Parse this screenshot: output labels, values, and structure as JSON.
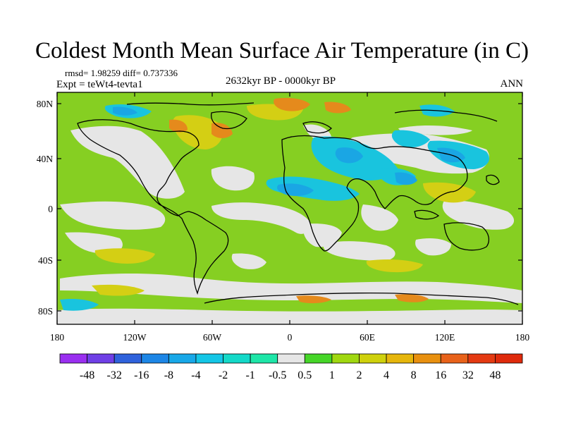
{
  "title": "Coldest Month Mean Surface Air Temperature (in C)",
  "stats_line": "rmsd= 1.98259 diff= 0.737336",
  "experiment_line": "Expt = teWt4-tevta1",
  "period_line": "2632kyr BP - 0000kyr BP",
  "season": "ANN",
  "axes": {
    "x_ticks": [
      "180",
      "120W",
      "60W",
      "0",
      "60E",
      "120E",
      "180"
    ],
    "y_ticks": [
      "80N",
      "40N",
      "0",
      "40S",
      "80S"
    ]
  },
  "colorbar": {
    "labels": [
      "-48",
      "-32",
      "-16",
      "-8",
      "-4",
      "-2",
      "-1",
      "-0.5",
      "0.5",
      "1",
      "2",
      "4",
      "8",
      "16",
      "32",
      "48"
    ],
    "colors": [
      "#9a2ff0",
      "#6f3fe6",
      "#2f62dc",
      "#1d86e6",
      "#18a8e8",
      "#14c6e6",
      "#14d9c8",
      "#1ee6a8",
      "#e6e6e6",
      "#46d628",
      "#a0d810",
      "#cfd10c",
      "#e6b60c",
      "#e8900f",
      "#e8621a",
      "#e43a12",
      "#df2a0c"
    ]
  },
  "map_colors": {
    "background": "#86cf22",
    "neutral": "#e6e6e6",
    "cool": "#19c4de",
    "cold": "#1aa6e4",
    "warm": "#d4cf14",
    "hot": "#e58a1c",
    "coast": "#000000"
  }
}
